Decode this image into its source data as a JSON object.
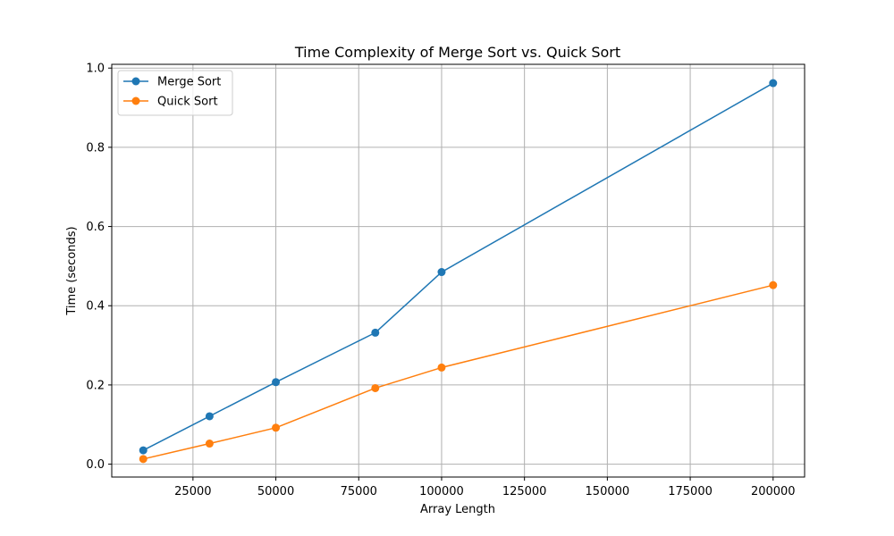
{
  "chart_data": {
    "type": "line",
    "title": "Time Complexity of Merge Sort vs. Quick Sort",
    "xlabel": "Array Length",
    "ylabel": "Time (seconds)",
    "x": [
      10000,
      30000,
      50000,
      80000,
      100000,
      200000
    ],
    "series": [
      {
        "name": "Merge Sort",
        "color": "#1f77b4",
        "values": [
          0.035,
          0.121,
          0.207,
          0.332,
          0.485,
          0.962
        ]
      },
      {
        "name": "Quick Sort",
        "color": "#ff7f0e",
        "values": [
          0.013,
          0.052,
          0.092,
          0.192,
          0.244,
          0.452
        ]
      }
    ],
    "xlim": [
      500,
      209500
    ],
    "ylim": [
      -0.0325,
      1.0095
    ],
    "xticks": [
      25000,
      50000,
      75000,
      100000,
      125000,
      150000,
      175000,
      200000
    ],
    "xtick_labels": [
      "25000",
      "50000",
      "75000",
      "100000",
      "125000",
      "150000",
      "175000",
      "200000"
    ],
    "yticks": [
      0.0,
      0.2,
      0.4,
      0.6,
      0.8,
      1.0
    ],
    "ytick_labels": [
      "0.0",
      "0.2",
      "0.4",
      "0.6",
      "0.8",
      "1.0"
    ],
    "grid": true,
    "legend_position": "top-left",
    "markers": "circle"
  }
}
